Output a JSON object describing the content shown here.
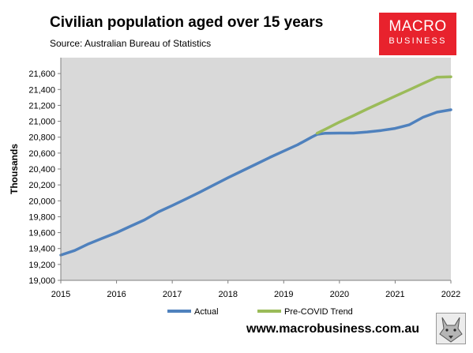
{
  "header": {
    "title": "Civilian population aged over 15 years",
    "subtitle": "Source: Australian Bureau of Statistics"
  },
  "brand": {
    "line1": "MACRO",
    "line2": "BUSINESS",
    "color": "#e8222d",
    "website": "www.macrobusiness.com.au",
    "mascot_icon": "wolf-icon"
  },
  "chart_data": {
    "type": "line",
    "ylabel": "Thousands",
    "xlabel": "",
    "xlim": [
      2015,
      2022
    ],
    "ylim": [
      19000,
      21800
    ],
    "x_ticks": [
      2015,
      2016,
      2017,
      2018,
      2019,
      2020,
      2021,
      2022
    ],
    "y_ticks": [
      19000,
      19200,
      19400,
      19600,
      19800,
      20000,
      20200,
      20400,
      20600,
      20800,
      21000,
      21200,
      21400,
      21600
    ],
    "grid": false,
    "plot_background": "#d9d9d9",
    "legend_position": "bottom",
    "series": [
      {
        "name": "Actual",
        "color": "#4f81bd",
        "points": [
          [
            2015.0,
            19318
          ],
          [
            2015.25,
            19375
          ],
          [
            2015.5,
            19460
          ],
          [
            2015.75,
            19530
          ],
          [
            2016.0,
            19600
          ],
          [
            2016.25,
            19680
          ],
          [
            2016.5,
            19760
          ],
          [
            2016.75,
            19860
          ],
          [
            2017.0,
            19940
          ],
          [
            2017.25,
            20025
          ],
          [
            2017.5,
            20110
          ],
          [
            2017.75,
            20200
          ],
          [
            2018.0,
            20290
          ],
          [
            2018.25,
            20375
          ],
          [
            2018.5,
            20460
          ],
          [
            2018.75,
            20545
          ],
          [
            2019.0,
            20625
          ],
          [
            2019.25,
            20705
          ],
          [
            2019.5,
            20800
          ],
          [
            2019.6,
            20835
          ],
          [
            2019.75,
            20850
          ],
          [
            2020.0,
            20852
          ],
          [
            2020.25,
            20852
          ],
          [
            2020.5,
            20866
          ],
          [
            2020.75,
            20885
          ],
          [
            2021.0,
            20910
          ],
          [
            2021.25,
            20955
          ],
          [
            2021.5,
            21050
          ],
          [
            2021.75,
            21115
          ],
          [
            2022.0,
            21145
          ]
        ]
      },
      {
        "name": "Pre-COVID Trend",
        "color": "#9bbb59",
        "points": [
          [
            2019.6,
            20850
          ],
          [
            2019.75,
            20900
          ],
          [
            2020.0,
            20990
          ],
          [
            2020.25,
            21070
          ],
          [
            2020.5,
            21155
          ],
          [
            2020.75,
            21235
          ],
          [
            2021.0,
            21315
          ],
          [
            2021.25,
            21395
          ],
          [
            2021.5,
            21475
          ],
          [
            2021.75,
            21555
          ],
          [
            2022.0,
            21560
          ]
        ]
      }
    ]
  }
}
